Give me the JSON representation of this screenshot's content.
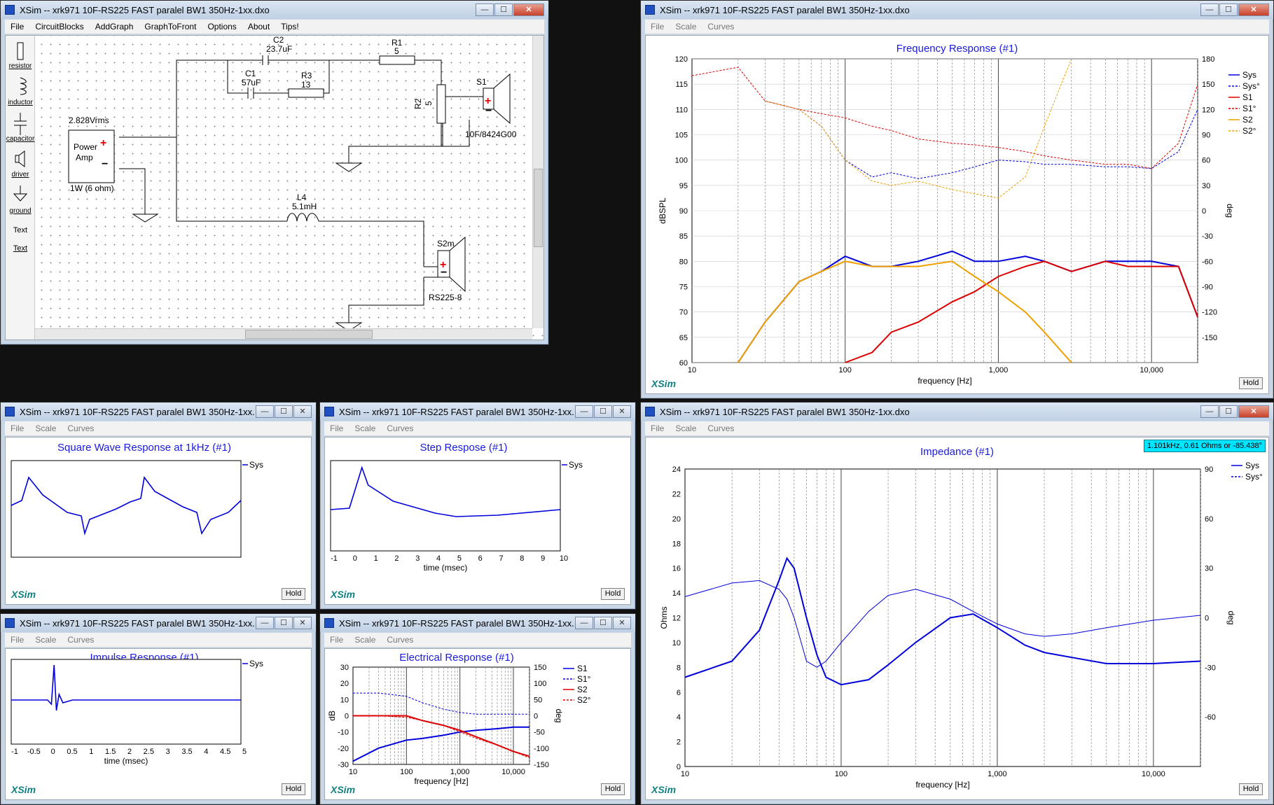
{
  "window_title": "XSim -- xrk971 10F-RS225 FAST paralel BW1 350Hz-1xx.dxo",
  "window_title_short": "XSim -- xrk971 10F-RS225 FAST paralel BW1 350Hz-1xx.d...",
  "main_menu": [
    "File",
    "CircuitBlocks",
    "AddGraph",
    "GraphToFront",
    "Options",
    "About",
    "Tips!"
  ],
  "graph_menu": [
    "File",
    "Scale",
    "Curves"
  ],
  "hold_label": "Hold",
  "brand": "XSim",
  "palette": [
    "resistor",
    "inductor",
    "capacitor",
    "driver",
    "ground",
    "Text",
    "Text"
  ],
  "schematic": {
    "source_voltage": "2.828Vrms",
    "source_name": "Power\nAmp",
    "source_power": "1W (6 ohm)",
    "c2": {
      "name": "C2",
      "value": "23.7uF"
    },
    "c1": {
      "name": "C1",
      "value": "57uF"
    },
    "r1": {
      "name": "R1",
      "value": "5"
    },
    "r3": {
      "name": "R3",
      "value": "13"
    },
    "r2": {
      "name": "R2",
      "value": "5"
    },
    "l4": {
      "name": "L4",
      "value": "5.1mH"
    },
    "s1": {
      "name": "S1",
      "model": "10F/8424G00"
    },
    "s2": {
      "name": "S2m",
      "model": "RS225-8"
    }
  },
  "freq_response": {
    "title": "Frequency Response (#1)",
    "xlabel": "frequency [Hz]",
    "ylabel_left": "dBSPL",
    "ylabel_right": "deg",
    "left_ticks": [
      "120",
      "115",
      "110",
      "105",
      "100",
      "95",
      "90",
      "85",
      "80",
      "75",
      "70",
      "65",
      "60"
    ],
    "right_ticks": [
      "180",
      "150",
      "120",
      "90",
      "60",
      "30",
      "0",
      "-30",
      "-60",
      "-90",
      "-120",
      "-150"
    ],
    "x_ticks": [
      "10",
      "100",
      "1,000",
      "10,000"
    ],
    "legend": [
      {
        "name": "Sys",
        "color": "#0000dd",
        "dash": false
      },
      {
        "name": "Sys°",
        "color": "#0000dd",
        "dash": true
      },
      {
        "name": "S1",
        "color": "#dd0000",
        "dash": false
      },
      {
        "name": "S1°",
        "color": "#dd0000",
        "dash": true
      },
      {
        "name": "S2",
        "color": "#f0a000",
        "dash": false
      },
      {
        "name": "S2°",
        "color": "#f0a000",
        "dash": true
      }
    ]
  },
  "square_wave": {
    "title": "Square Wave Response at 1kHz (#1)",
    "legend": "Sys"
  },
  "step_response": {
    "title": "Step Respose (#1)",
    "legend": "Sys",
    "xlabel": "time (msec)",
    "x_ticks": [
      "-1",
      "0",
      "1",
      "2",
      "3",
      "4",
      "5",
      "6",
      "7",
      "8",
      "9",
      "10"
    ]
  },
  "impulse_response": {
    "title": "Impulse Response (#1)",
    "legend": "Sys",
    "xlabel": "time (msec)",
    "x_ticks": [
      "-1",
      "-0.5",
      "0",
      "0.5",
      "1",
      "1.5",
      "2",
      "2.5",
      "3",
      "3.5",
      "4",
      "4.5",
      "5"
    ]
  },
  "electrical_response": {
    "title": "Electrical Response (#1)",
    "xlabel": "frequency [Hz]",
    "ylabel_left": "dB",
    "ylabel_right": "deg",
    "left_ticks": [
      "30",
      "20",
      "10",
      "0",
      "-10",
      "-20",
      "-30"
    ],
    "right_ticks": [
      "150",
      "100",
      "50",
      "0",
      "-50",
      "-100",
      "-150"
    ],
    "x_ticks": [
      "10",
      "100",
      "1,000",
      "10,000"
    ],
    "legend": [
      {
        "name": "S1",
        "color": "#0000dd",
        "dash": false
      },
      {
        "name": "S1°",
        "color": "#0000dd",
        "dash": true
      },
      {
        "name": "S2",
        "color": "#dd0000",
        "dash": false
      },
      {
        "name": "S2°",
        "color": "#dd0000",
        "dash": true
      }
    ]
  },
  "impedance": {
    "title": "Impedance (#1)",
    "tooltip": "1.101kHz, 0.61 Ohms or -85.438°",
    "xlabel": "frequency [Hz]",
    "ylabel_left": "Ohms",
    "ylabel_right": "deg",
    "left_ticks": [
      "24",
      "22",
      "20",
      "18",
      "16",
      "14",
      "12",
      "10",
      "8",
      "6",
      "4",
      "2",
      "0"
    ],
    "right_ticks": [
      "90",
      "60",
      "30",
      "0",
      "-30",
      "-60"
    ],
    "x_ticks": [
      "10",
      "100",
      "1,000",
      "10,000"
    ],
    "legend": [
      {
        "name": "Sys",
        "color": "#0000dd",
        "dash": false
      },
      {
        "name": "Sys°",
        "color": "#0000dd",
        "dash": true
      }
    ]
  },
  "chart_data": [
    {
      "type": "line",
      "title": "Frequency Response (#1)",
      "xlabel": "frequency [Hz]",
      "ylabel": "dBSPL",
      "xscale": "log",
      "xlim": [
        10,
        20000
      ],
      "ylim": [
        60,
        120
      ],
      "y2label": "deg",
      "y2lim": [
        -180,
        180
      ],
      "grid": true,
      "legend_position": "top-right",
      "x": [
        10,
        20,
        30,
        50,
        70,
        100,
        150,
        200,
        300,
        500,
        700,
        1000,
        1500,
        2000,
        3000,
        5000,
        7000,
        10000,
        15000,
        20000
      ],
      "series": [
        {
          "name": "Sys",
          "values": [
            null,
            60,
            68,
            76,
            78,
            81,
            79,
            79,
            80,
            82,
            80,
            80,
            81,
            80,
            78,
            80,
            80,
            80,
            79,
            69
          ]
        },
        {
          "name": "S1",
          "values": [
            null,
            null,
            null,
            null,
            null,
            60,
            62,
            66,
            68,
            72,
            74,
            77,
            79,
            80,
            78,
            80,
            79,
            79,
            79,
            69
          ]
        },
        {
          "name": "S2",
          "values": [
            null,
            60,
            68,
            76,
            78,
            80,
            79,
            79,
            79,
            80,
            77,
            74,
            70,
            66,
            60,
            null,
            null,
            null,
            null,
            null
          ]
        },
        {
          "name": "Sys°",
          "values": [
            null,
            null,
            130,
            120,
            100,
            60,
            40,
            45,
            38,
            45,
            52,
            60,
            58,
            55,
            55,
            52,
            52,
            50,
            70,
            120
          ]
        },
        {
          "name": "S1°",
          "values": [
            160,
            170,
            130,
            120,
            115,
            110,
            100,
            95,
            85,
            80,
            78,
            75,
            70,
            65,
            60,
            55,
            55,
            50,
            80,
            150
          ]
        },
        {
          "name": "S2°",
          "values": [
            null,
            null,
            130,
            120,
            100,
            60,
            35,
            30,
            35,
            25,
            20,
            15,
            40,
            100,
            180,
            null,
            null,
            null,
            null,
            null
          ]
        }
      ]
    },
    {
      "type": "line",
      "title": "Impedance (#1)",
      "xlabel": "frequency [Hz]",
      "ylabel": "Ohms",
      "xscale": "log",
      "xlim": [
        10,
        20000
      ],
      "ylim": [
        0,
        24
      ],
      "y2label": "deg",
      "y2lim": [
        -90,
        90
      ],
      "grid": true,
      "legend_position": "top-right",
      "x": [
        10,
        20,
        30,
        40,
        45,
        50,
        60,
        70,
        80,
        100,
        150,
        200,
        300,
        500,
        700,
        1000,
        1500,
        2000,
        3000,
        5000,
        10000,
        20000
      ],
      "series": [
        {
          "name": "Sys",
          "values": [
            7.2,
            8.5,
            11.0,
            15.0,
            16.8,
            16.0,
            12.0,
            9.0,
            7.2,
            6.6,
            7.0,
            8.2,
            10.0,
            12.0,
            12.3,
            11.2,
            9.8,
            9.2,
            8.8,
            8.3,
            8.3,
            8.5
          ]
        },
        {
          "name": "Sys°",
          "values": [
            13.7,
            14.8,
            15.0,
            14.3,
            13.5,
            12.0,
            8.5,
            8.0,
            8.5,
            10.0,
            12.5,
            13.8,
            14.3,
            13.5,
            12.5,
            11.5,
            10.7,
            10.5,
            10.7,
            11.2,
            11.8,
            12.2
          ]
        }
      ]
    },
    {
      "type": "line",
      "title": "Square Wave Response at 1kHz (#1)",
      "series": [
        {
          "name": "Sys",
          "values": []
        }
      ]
    },
    {
      "type": "line",
      "title": "Step Respose (#1)",
      "xlabel": "time (msec)",
      "xlim": [
        -1,
        10
      ],
      "series": [
        {
          "name": "Sys",
          "values": []
        }
      ]
    },
    {
      "type": "line",
      "title": "Impulse Response (#1)",
      "xlabel": "time (msec)",
      "xlim": [
        -1,
        5
      ],
      "series": [
        {
          "name": "Sys",
          "values": []
        }
      ]
    },
    {
      "type": "line",
      "title": "Electrical Response (#1)",
      "xlabel": "frequency [Hz]",
      "ylabel": "dB",
      "xscale": "log",
      "xlim": [
        10,
        20000
      ],
      "ylim": [
        -30,
        30
      ],
      "y2label": "deg",
      "y2lim": [
        -180,
        180
      ],
      "x": [
        10,
        30,
        100,
        200,
        500,
        1000,
        2000,
        5000,
        10000,
        20000
      ],
      "series": [
        {
          "name": "S1",
          "values": [
            -28,
            -20,
            -15,
            -14,
            -12,
            -10,
            -9,
            -8,
            -7,
            -7
          ]
        },
        {
          "name": "S1°",
          "values": [
            14,
            14,
            12,
            8,
            4,
            2,
            1,
            1,
            1,
            1
          ]
        },
        {
          "name": "S2",
          "values": [
            0,
            0,
            0,
            -3,
            -6,
            -9,
            -13,
            -18,
            -22,
            -25
          ]
        },
        {
          "name": "S2°",
          "values": [
            0,
            0,
            -1,
            -3,
            -6,
            -10,
            -14,
            -18,
            -22,
            -26
          ]
        }
      ]
    }
  ]
}
